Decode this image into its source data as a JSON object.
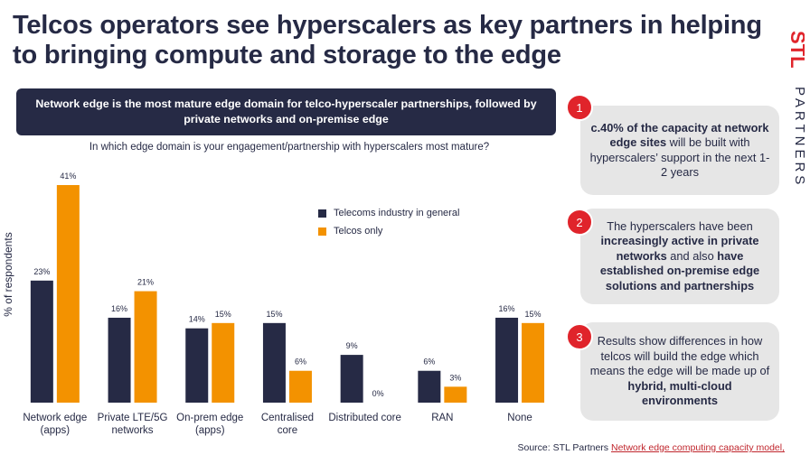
{
  "title": "Telcos operators see hyperscalers as key partners in helping to bringing compute and storage to the edge",
  "logo": {
    "letters": "STL",
    "partners": "PARTNERS",
    "colors": [
      "#e0242b",
      "#f39200"
    ]
  },
  "banner": "Network edge is the most mature edge domain for telco-hyperscaler partnerships, followed by private networks and on-premise edge",
  "question": "In which edge domain is your engagement/partnership with hyperscalers most mature?",
  "chart_data": {
    "type": "bar",
    "ylabel": "% of respondents",
    "ylim": [
      0,
      45
    ],
    "grid": false,
    "legend_position": "top-right",
    "categories": [
      [
        "Network edge",
        "(apps)"
      ],
      [
        "Private LTE/5G",
        "networks"
      ],
      [
        "On-prem edge",
        "(apps)"
      ],
      [
        "Centralised",
        "core"
      ],
      [
        "Distributed core"
      ],
      [
        "RAN"
      ],
      [
        "None"
      ]
    ],
    "series": [
      {
        "name": "Telecoms industry in general",
        "color": "#262a45",
        "values": [
          23,
          16,
          14,
          15,
          9,
          6,
          16
        ],
        "labels": [
          "23%",
          "16%",
          "14%",
          "15%",
          "9%",
          "6%",
          "16%"
        ]
      },
      {
        "name": "Telcos only",
        "color": "#f39200",
        "values": [
          41,
          21,
          15,
          6,
          0,
          3,
          15
        ],
        "labels": [
          "41%",
          "21%",
          "15%",
          "6%",
          "0%",
          "3%",
          "15%"
        ]
      }
    ]
  },
  "legend": {
    "series1": "Telecoms industry in general",
    "series2": "Telcos only"
  },
  "cards": [
    {
      "number": "1",
      "segments": [
        {
          "text": "c.40% of the capacity at network edge sites",
          "bold": true
        },
        {
          "text": " will be built with hyperscalers’ support in the next 1-2 years",
          "bold": false
        }
      ]
    },
    {
      "number": "2",
      "segments": [
        {
          "text": "The hyperscalers have been ",
          "bold": false
        },
        {
          "text": "increasingly active",
          "bold": true
        },
        {
          "text": " in private networks",
          "bold": true
        },
        {
          "text": " and also ",
          "bold": false
        },
        {
          "text": "have established on-premise edge solutions and partnerships",
          "bold": true
        }
      ]
    },
    {
      "number": "3",
      "segments": [
        {
          "text": "Results show differences in how telcos will build the edge which means the edge will be made up of ",
          "bold": false
        },
        {
          "text": "hybrid, multi-cloud environments",
          "bold": true
        }
      ]
    }
  ],
  "source": {
    "prefix": "Source: STL Partners ",
    "link": "Network edge computing capacity model,"
  }
}
